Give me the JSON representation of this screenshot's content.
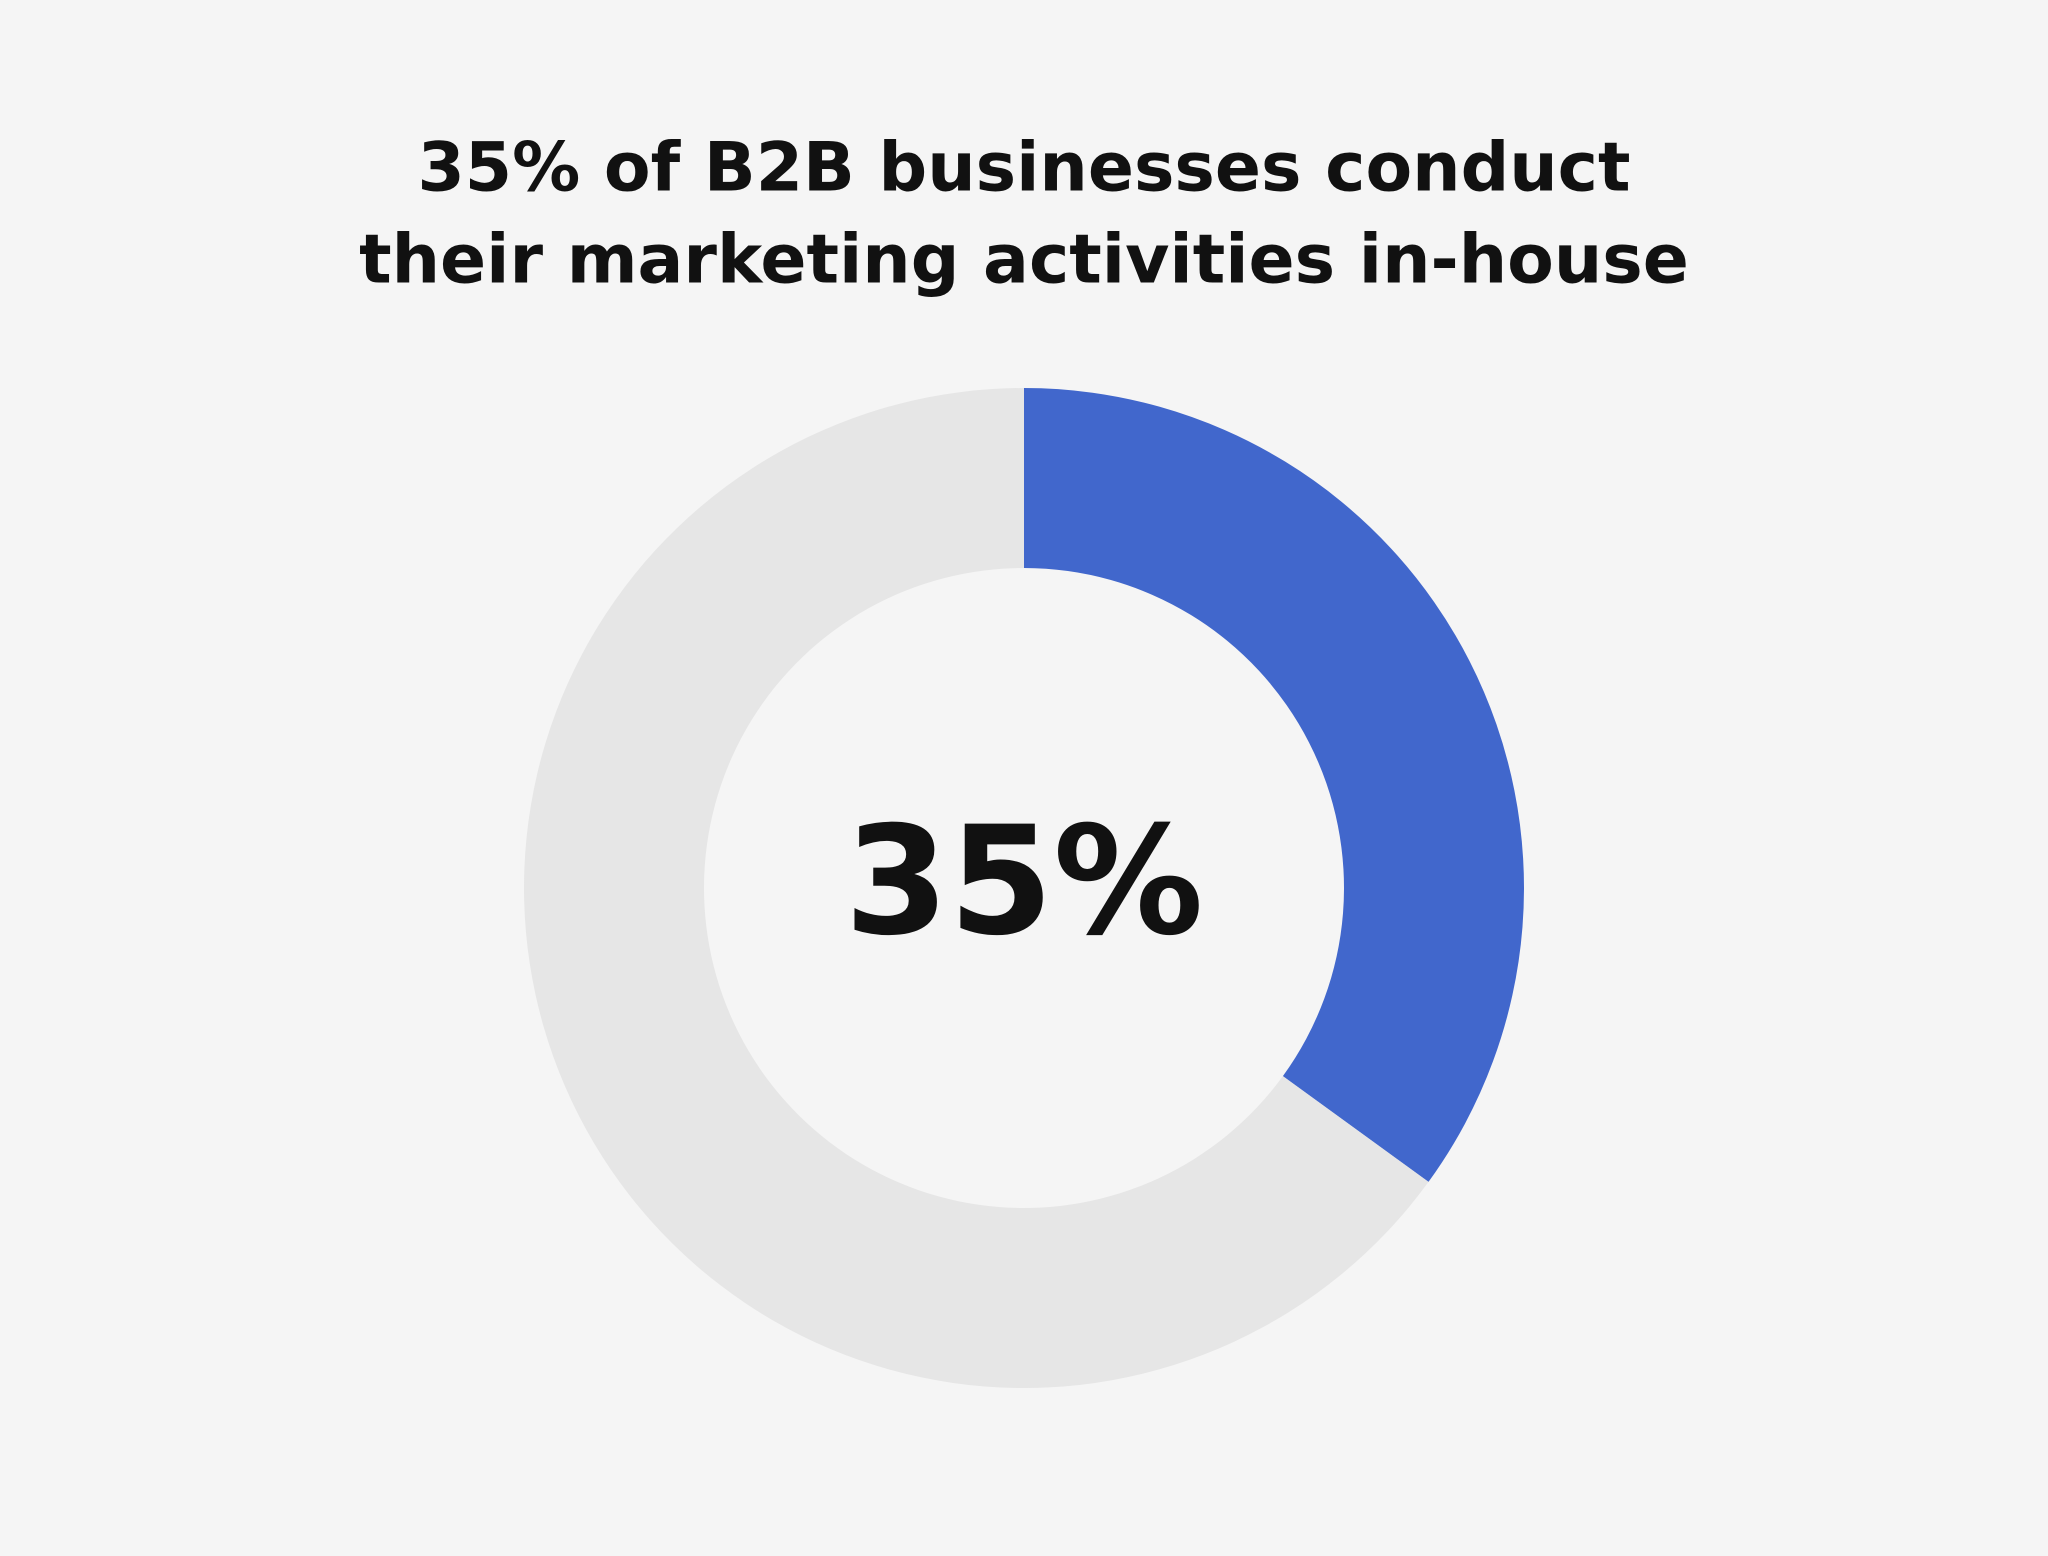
{
  "chart_data": {
    "type": "donut",
    "title": [
      "35% of B2B businesses conduct",
      "their marketing activities in-house"
    ],
    "values": [
      35,
      65
    ],
    "value_labels": [
      "35%",
      null
    ],
    "colors": [
      "#4167cc",
      "#e6e6e6"
    ]
  }
}
